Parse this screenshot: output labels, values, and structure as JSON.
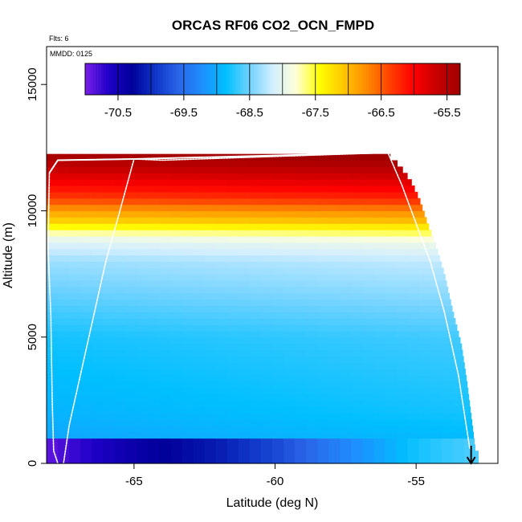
{
  "chart_data": {
    "type": "heatmap",
    "title": "ORCAS RF06 CO2_OCN_FMPD",
    "flights_note": "Flts: 6",
    "date_note": "MMDD: 0125",
    "xlabel": "Latitude (deg N)",
    "ylabel": "Altitude (m)",
    "xlim": [
      -68.1,
      -52.1
    ],
    "ylim": [
      0,
      16500
    ],
    "x_ticks": [
      -65,
      -60,
      -55
    ],
    "x_tick_labels": [
      "-65",
      "-60",
      "-55"
    ],
    "y_ticks": [
      0,
      5000,
      10000,
      15000
    ],
    "y_tick_labels": [
      "0",
      "5000",
      "10000",
      "15000"
    ],
    "colorbar": {
      "min": -71.0,
      "max": -65.3,
      "ticks": [
        -70.5,
        -69.5,
        -68.5,
        -67.5,
        -66.5,
        -65.5
      ],
      "tick_labels": [
        "-70.5",
        "-69.5",
        "-68.5",
        "-67.5",
        "-66.5",
        "-65.5"
      ],
      "colors": [
        "#7a1fe8",
        "#1f00c8",
        "#00009a",
        "#0f36c8",
        "#2a66e8",
        "#1e90ff",
        "#00bfff",
        "#6fd2ff",
        "#d2eeff",
        "#ffffd8",
        "#ffff00",
        "#ffc800",
        "#ff8c00",
        "#ff4000",
        "#ff0000",
        "#c80000",
        "#a00000"
      ]
    },
    "profile": [
      {
        "alt": 0,
        "value": -71.0
      },
      {
        "alt": 300,
        "value": -70.8
      },
      {
        "alt": 700,
        "value": -70.3
      },
      {
        "alt": 1000,
        "value": -69.0
      },
      {
        "alt": 1500,
        "value": -68.95
      },
      {
        "alt": 2000,
        "value": -68.9
      },
      {
        "alt": 3000,
        "value": -68.85
      },
      {
        "alt": 4000,
        "value": -68.8
      },
      {
        "alt": 5000,
        "value": -68.75
      },
      {
        "alt": 6000,
        "value": -68.6
      },
      {
        "alt": 7000,
        "value": -68.45
      },
      {
        "alt": 8000,
        "value": -68.3
      },
      {
        "alt": 8800,
        "value": -68.0
      },
      {
        "alt": 9200,
        "value": -67.6
      },
      {
        "alt": 9600,
        "value": -67.1
      },
      {
        "alt": 10000,
        "value": -66.8
      },
      {
        "alt": 10500,
        "value": -66.3
      },
      {
        "alt": 11000,
        "value": -66.0
      },
      {
        "alt": 11500,
        "value": -65.7
      },
      {
        "alt": 12200,
        "value": -65.3
      }
    ],
    "lat_profile": [
      {
        "lat": -68.1,
        "value": -70.9
      },
      {
        "lat": -65.0,
        "value": -70.4
      },
      {
        "lat": -62.0,
        "value": -70.1
      },
      {
        "lat": -60.0,
        "value": -69.8
      },
      {
        "lat": -57.0,
        "value": -69.2
      },
      {
        "lat": -55.0,
        "value": -68.8
      },
      {
        "lat": -52.8,
        "value": -68.6
      }
    ],
    "lat_max": -52.8,
    "boundary": [
      {
        "lat": -56.0,
        "alt": 12200
      },
      {
        "lat": -55.6,
        "alt": 11800
      },
      {
        "lat": -55.2,
        "alt": 11200
      },
      {
        "lat": -54.9,
        "alt": 10500
      },
      {
        "lat": -54.6,
        "alt": 9500
      },
      {
        "lat": -54.3,
        "alt": 8600
      },
      {
        "lat": -54.0,
        "alt": 7500
      },
      {
        "lat": -53.7,
        "alt": 6000
      },
      {
        "lat": -53.4,
        "alt": 4700
      },
      {
        "lat": -53.2,
        "alt": 3200
      },
      {
        "lat": -52.9,
        "alt": 500
      }
    ],
    "flight_track": [
      {
        "lat": -67.7,
        "alt": 0
      },
      {
        "lat": -67.85,
        "alt": 500
      },
      {
        "lat": -67.9,
        "alt": 2500
      },
      {
        "lat": -67.95,
        "alt": 5900
      },
      {
        "lat": -68.05,
        "alt": 8600
      },
      {
        "lat": -68.0,
        "alt": 11500
      },
      {
        "lat": -67.7,
        "alt": 12000
      },
      {
        "lat": -65.0,
        "alt": 12050
      },
      {
        "lat": -64.0,
        "alt": 12000
      },
      {
        "lat": -56.0,
        "alt": 12300
      },
      {
        "lat": -55.5,
        "alt": 11000
      },
      {
        "lat": -55.0,
        "alt": 9500
      },
      {
        "lat": -54.5,
        "alt": 8000
      },
      {
        "lat": -54.0,
        "alt": 6000
      },
      {
        "lat": -53.5,
        "alt": 3500
      },
      {
        "lat": -53.1,
        "alt": 600
      }
    ],
    "flight_track_2": [
      {
        "lat": -67.5,
        "alt": 0
      },
      {
        "lat": -67.3,
        "alt": 1500
      },
      {
        "lat": -66.6,
        "alt": 5000
      },
      {
        "lat": -66.0,
        "alt": 8000
      },
      {
        "lat": -65.5,
        "alt": 10000
      },
      {
        "lat": -65.0,
        "alt": 12050
      }
    ],
    "arrow": {
      "lat": -53.05,
      "alt_top": 700,
      "alt_bottom": 0
    }
  }
}
